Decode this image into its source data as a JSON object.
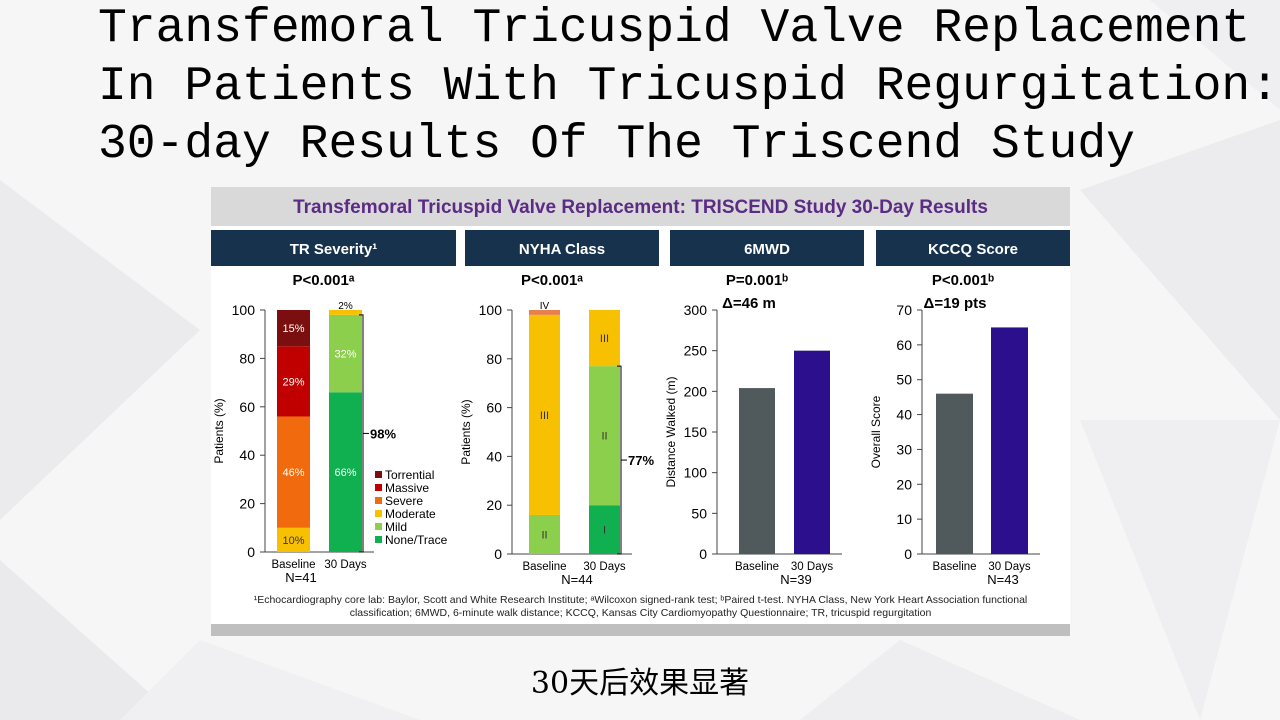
{
  "slide": {
    "title_lines": [
      "Transfemoral Tricuspid Valve Replacement",
      "In Patients With Tricuspid Regurgitation:",
      "30-day Results Of The Triscend Study"
    ],
    "caption": "30天后效果显著"
  },
  "panel": {
    "header": "Transfemoral Tricuspid Valve Replacement: TRISCEND Study 30-Day Results",
    "footnote_line1": "¹Echocardiography core lab: Baylor, Scott and White Research Institute; ᵃWilcoxon signed-rank test; ᵇPaired t-test. NYHA Class, New York Heart Association functional",
    "footnote_line2": "classification; 6MWD, 6-minute walk distance; KCCQ, Kansas City Cardiomyopathy Questionnaire; TR, tricuspid regurgitation"
  },
  "colors": {
    "navy": "#17324d",
    "gray_bar": "#505a5c",
    "blue_bar": "#2b0f8c",
    "torrential": "#7b0f0f",
    "massive": "#c00000",
    "severe": "#f26a0e",
    "moderate": "#f7c000",
    "mild": "#8ccf4d",
    "none_trace": "#10b050",
    "nyha_IV": "#e8804a"
  },
  "chart_data": [
    {
      "type": "bar",
      "stacked": true,
      "header": "TR Severity¹",
      "pvalue": "P<0.001ᵃ",
      "ylabel": "Patients (%)",
      "ylim": [
        0,
        100
      ],
      "yticks": [
        "0",
        "20",
        "40",
        "60",
        "80",
        "100"
      ],
      "categories": [
        "Baseline",
        "30 Days"
      ],
      "n_label": "N=41",
      "series": [
        {
          "name": "None/Trace",
          "values": [
            0,
            66
          ],
          "labels": [
            "",
            "66%"
          ]
        },
        {
          "name": "Mild",
          "values": [
            0,
            32
          ],
          "labels": [
            "",
            "32%"
          ]
        },
        {
          "name": "Moderate",
          "values": [
            10,
            2
          ],
          "labels": [
            "10%",
            "2%"
          ]
        },
        {
          "name": "Severe",
          "values": [
            46,
            0
          ],
          "labels": [
            "46%",
            ""
          ]
        },
        {
          "name": "Massive",
          "values": [
            29,
            0
          ],
          "labels": [
            "29%",
            ""
          ]
        },
        {
          "name": "Torrential",
          "values": [
            15,
            0
          ],
          "labels": [
            "15%",
            ""
          ]
        }
      ],
      "legend": [
        "Torrential",
        "Massive",
        "Severe",
        "Moderate",
        "Mild",
        "None/Trace"
      ],
      "bracket_label": "98%"
    },
    {
      "type": "bar",
      "stacked": true,
      "header": "NYHA Class",
      "pvalue": "P<0.001ᵃ",
      "ylabel": "Patients (%)",
      "ylim": [
        0,
        100
      ],
      "yticks": [
        "0",
        "20",
        "40",
        "60",
        "80",
        "100"
      ],
      "categories": [
        "Baseline",
        "30 Days"
      ],
      "n_label": "N=44",
      "series": [
        {
          "name": "I",
          "values": [
            0,
            20
          ],
          "labels": [
            "",
            "I"
          ]
        },
        {
          "name": "II",
          "values": [
            16,
            57
          ],
          "labels": [
            "II",
            "II"
          ]
        },
        {
          "name": "III",
          "values": [
            82,
            23
          ],
          "labels": [
            "III",
            "III"
          ]
        },
        {
          "name": "IV",
          "values": [
            2,
            0
          ],
          "labels": [
            "IV",
            ""
          ]
        }
      ],
      "bracket_label": "77%"
    },
    {
      "type": "bar",
      "header": "6MWD",
      "pvalue": "P=0.001ᵇ",
      "delta": "Δ=46 m",
      "ylabel": "Distance Walked (m)",
      "ylim": [
        0,
        300
      ],
      "yticks": [
        "0",
        "50",
        "100",
        "150",
        "200",
        "250",
        "300"
      ],
      "categories": [
        "Baseline",
        "30 Days"
      ],
      "values": [
        204,
        250
      ],
      "n_label": "N=39"
    },
    {
      "type": "bar",
      "header": "KCCQ Score",
      "pvalue": "P<0.001ᵇ",
      "delta": "Δ=19 pts",
      "ylabel": "Overall Score",
      "ylim": [
        0,
        70
      ],
      "yticks": [
        "0",
        "10",
        "20",
        "30",
        "40",
        "50",
        "60",
        "70"
      ],
      "categories": [
        "Baseline",
        "30 Days"
      ],
      "values": [
        46,
        65
      ],
      "n_label": "N=43"
    }
  ]
}
